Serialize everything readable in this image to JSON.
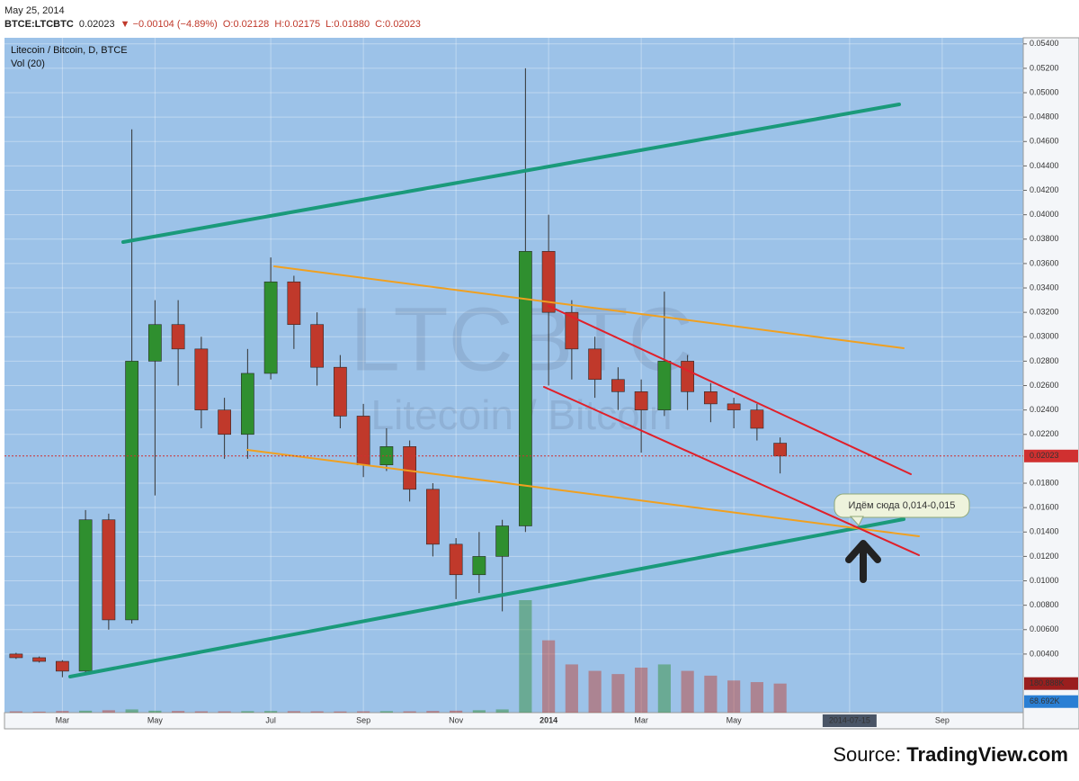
{
  "header": {
    "date": "May 25, 2014",
    "symbol": "BTCE:LTCBTC",
    "price": "0.02023",
    "change": "▼ −0.00104 (−4.89%)",
    "open": "O:0.02128",
    "high": "H:0.02175",
    "low": "L:0.01880",
    "close": "C:0.02023"
  },
  "chart_data": {
    "type": "candlestick",
    "title": "Litecoin / Bitcoin, D, BTCE",
    "volume_label": "Vol (20)",
    "watermark": "LTCBTC",
    "watermark_subtitle": "Litecoin / Bitcoin",
    "annotation": "Идём сюда 0,014-0,015",
    "up_color": "#2f8f2f",
    "down_color": "#c0392b",
    "background": "#9cc2e8",
    "grid": true,
    "categories": [
      null,
      null,
      "Mar",
      null,
      null,
      null,
      "May",
      null,
      null,
      null,
      null,
      "Jul",
      null,
      null,
      null,
      "Sep",
      null,
      null,
      null,
      "Nov",
      null,
      null,
      null,
      "2014",
      null,
      null,
      null,
      "Mar",
      null,
      null,
      null,
      "May",
      null,
      null,
      null,
      null,
      "2014-07-15",
      null,
      null,
      null,
      "Sep",
      null,
      null,
      null
    ],
    "open": [
      0.004,
      0.0037,
      0.0034,
      0.0026,
      0.015,
      0.0068,
      0.028,
      0.031,
      0.029,
      0.024,
      0.022,
      0.027,
      0.0345,
      0.031,
      0.0275,
      0.0235,
      0.0195,
      0.021,
      0.0175,
      0.013,
      0.0105,
      0.012,
      0.0145,
      0.037,
      0.032,
      0.029,
      0.0265,
      0.0255,
      0.024,
      0.028,
      0.0255,
      0.0245,
      0.024,
      0.02128,
      null,
      null,
      null,
      null,
      null,
      null,
      null,
      null,
      null,
      null
    ],
    "high": [
      0.0041,
      0.0038,
      0.0035,
      0.0158,
      0.0155,
      0.047,
      0.033,
      0.033,
      0.03,
      0.025,
      0.029,
      0.0365,
      0.035,
      0.032,
      0.0285,
      0.0245,
      0.0225,
      0.0215,
      0.018,
      0.0135,
      0.014,
      0.015,
      0.052,
      0.04,
      0.033,
      0.03,
      0.0275,
      0.0265,
      0.0337,
      0.0285,
      0.0262,
      0.025,
      0.0245,
      0.02175,
      null,
      null,
      null,
      null,
      null,
      null,
      null,
      null,
      null,
      null
    ],
    "low": [
      0.0036,
      0.0033,
      0.0021,
      0.0025,
      0.006,
      0.0065,
      0.017,
      0.026,
      0.0225,
      0.02,
      0.02,
      0.0265,
      0.029,
      0.026,
      0.0225,
      0.0185,
      0.019,
      0.0165,
      0.012,
      0.0085,
      0.009,
      0.0075,
      0.014,
      0.026,
      0.0265,
      0.025,
      0.024,
      0.0205,
      0.0235,
      0.024,
      0.023,
      0.0225,
      0.0215,
      0.0188,
      null,
      null,
      null,
      null,
      null,
      null,
      null,
      null,
      null,
      null
    ],
    "close": [
      0.0037,
      0.0034,
      0.0026,
      0.015,
      0.0068,
      0.028,
      0.031,
      0.029,
      0.024,
      0.022,
      0.027,
      0.0345,
      0.031,
      0.0275,
      0.0235,
      0.0195,
      0.021,
      0.0175,
      0.013,
      0.0105,
      0.012,
      0.0145,
      0.037,
      0.032,
      0.029,
      0.0265,
      0.0255,
      0.024,
      0.028,
      0.0255,
      0.0245,
      0.024,
      0.0225,
      0.02023,
      null,
      null,
      null,
      null,
      null,
      null,
      null,
      null,
      null,
      null
    ],
    "volume": [
      8,
      6,
      10,
      12,
      15,
      20,
      12,
      10,
      8,
      8,
      9,
      10,
      9,
      8,
      7,
      8,
      9,
      8,
      10,
      12,
      15,
      20,
      700,
      450,
      300,
      260,
      240,
      280,
      300,
      260,
      230,
      200,
      190,
      180.888,
      null,
      null,
      null,
      null,
      null,
      null,
      null,
      null,
      null,
      null
    ],
    "volume_ylim": [
      0,
      4200
    ],
    "volume_markers": [
      {
        "value": 180.888,
        "label": "180.888K"
      },
      {
        "value": 68.692,
        "label": "68.692K"
      }
    ],
    "ylim": [
      -0.0008,
      0.0545
    ],
    "yticks": [
      {
        "value": 0.054,
        "label": "0.05400"
      },
      {
        "value": 0.052,
        "label": "0.05200"
      },
      {
        "value": 0.05,
        "label": "0.05000"
      },
      {
        "value": 0.048,
        "label": "0.04800"
      },
      {
        "value": 0.046,
        "label": "0.04600"
      },
      {
        "value": 0.044,
        "label": "0.04400"
      },
      {
        "value": 0.042,
        "label": "0.04200"
      },
      {
        "value": 0.04,
        "label": "0.04000"
      },
      {
        "value": 0.038,
        "label": "0.03800"
      },
      {
        "value": 0.036,
        "label": "0.03600"
      },
      {
        "value": 0.034,
        "label": "0.03400"
      },
      {
        "value": 0.032,
        "label": "0.03200"
      },
      {
        "value": 0.03,
        "label": "0.03000"
      },
      {
        "value": 0.028,
        "label": "0.02800"
      },
      {
        "value": 0.026,
        "label": "0.02600"
      },
      {
        "value": 0.024,
        "label": "0.02400"
      },
      {
        "value": 0.022,
        "label": "0.02200"
      },
      {
        "value": 0.018,
        "label": "0.01800"
      },
      {
        "value": 0.016,
        "label": "0.01600"
      },
      {
        "value": 0.014,
        "label": "0.01400"
      },
      {
        "value": 0.012,
        "label": "0.01200"
      },
      {
        "value": 0.01,
        "label": "0.01000"
      },
      {
        "value": 0.008,
        "label": "0.00800"
      },
      {
        "value": 0.006,
        "label": "0.00600"
      },
      {
        "value": 0.004,
        "label": "0.00400"
      }
    ]
  },
  "source": {
    "prefix": "Source:",
    "name": "TradingView.com"
  }
}
